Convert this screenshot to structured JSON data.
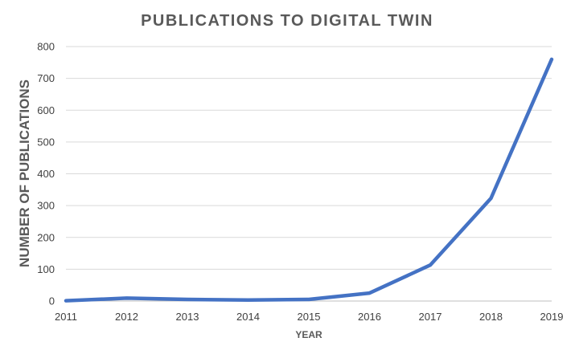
{
  "chart_data": {
    "type": "line",
    "title": "PUBLICATIONS TO DIGITAL TWIN",
    "xlabel": "YEAR",
    "ylabel": "NUMBER OF PUBLICATIONS",
    "categories": [
      "2011",
      "2012",
      "2013",
      "2014",
      "2015",
      "2016",
      "2017",
      "2018",
      "2019"
    ],
    "series": [
      {
        "values": [
          1,
          9,
          5,
          3,
          5,
          25,
          113,
          323,
          760
        ]
      }
    ],
    "yticks": [
      "0",
      "100",
      "200",
      "300",
      "400",
      "500",
      "600",
      "700",
      "800"
    ],
    "ylim": [
      0,
      800
    ],
    "grid": true,
    "legend": "none",
    "line_color": "#4472c4"
  }
}
